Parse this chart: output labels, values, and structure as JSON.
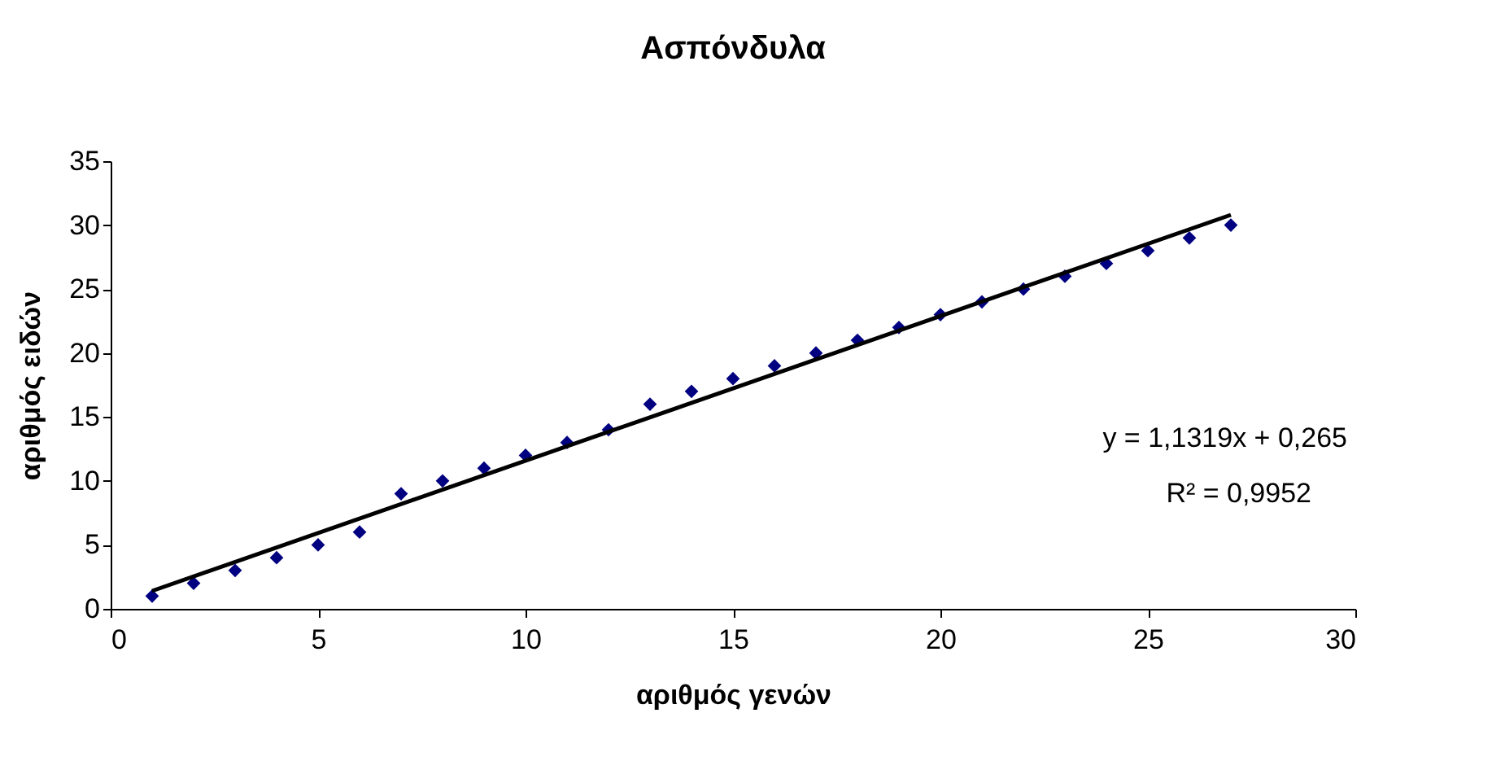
{
  "chart_data": {
    "type": "scatter",
    "title": "Ασπόνδυλα",
    "xlabel": "αριθμός γενών",
    "ylabel": "αριθμός ειδών",
    "series": [
      {
        "type": "scatter",
        "color": "#000080",
        "marker": "diamond",
        "x": [
          1,
          2,
          3,
          4,
          5,
          6,
          7,
          8,
          9,
          10,
          11,
          12,
          13,
          14,
          15,
          16,
          17,
          18,
          19,
          20,
          21,
          22,
          23,
          24,
          25,
          26,
          27
        ],
        "values": [
          1,
          2,
          3,
          4,
          5,
          6,
          9,
          10,
          11,
          12,
          13,
          14,
          16,
          17,
          18,
          19,
          20,
          21,
          22,
          23,
          24,
          25,
          26,
          27,
          28,
          29,
          30
        ]
      },
      {
        "type": "line",
        "color": "#000000",
        "line_style": "solid",
        "x": [
          1,
          27
        ],
        "values": [
          1.4,
          30.8
        ]
      }
    ],
    "annotations": [
      "y = 1,1319x + 0,265",
      "R² = 0,9952"
    ],
    "xlim": [
      0,
      30
    ],
    "xticks": [
      0,
      5,
      10,
      15,
      20,
      25,
      30
    ],
    "ylim": [
      0,
      35
    ],
    "yticks": [
      0,
      5,
      10,
      15,
      20,
      25,
      30,
      35
    ],
    "grid": false
  }
}
